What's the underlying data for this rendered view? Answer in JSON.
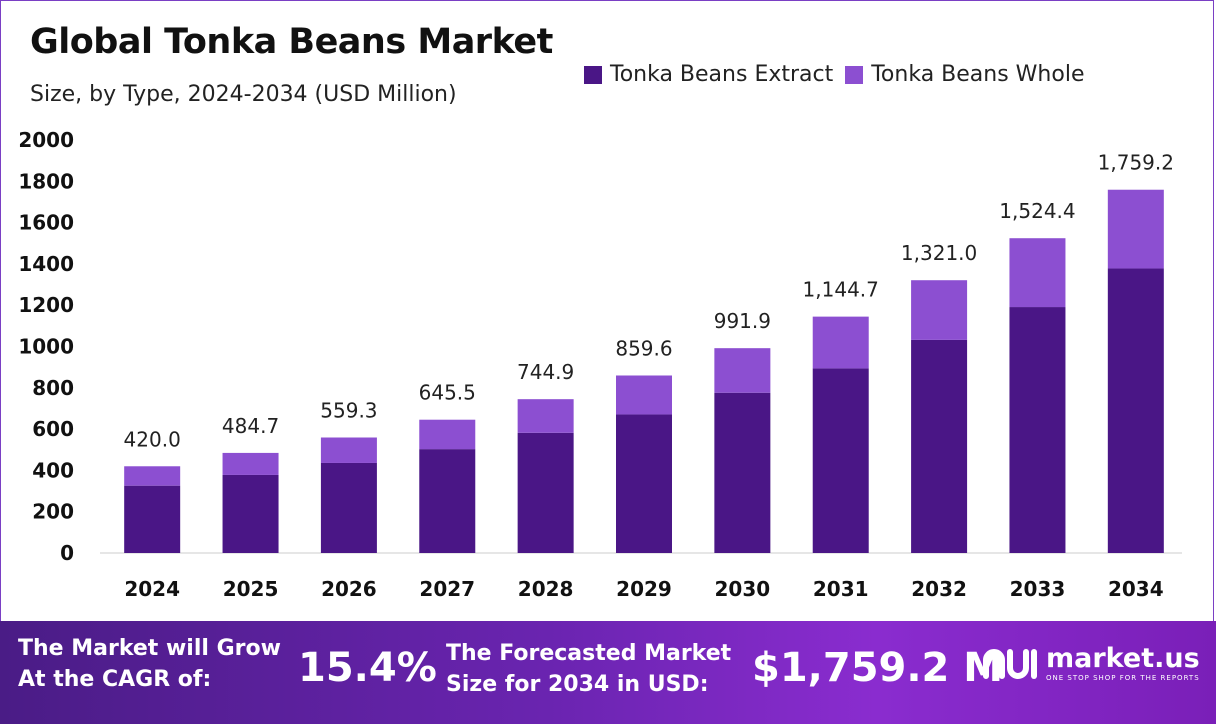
{
  "header": {
    "title": "Global Tonka Beans Market",
    "subtitle": "Size, by Type, 2024-2034 (USD Million)"
  },
  "legend": [
    {
      "label": "Tonka Beans Extract",
      "color": "#4a1686"
    },
    {
      "label": "Tonka Beans Whole",
      "color": "#8c4fd1"
    }
  ],
  "chart_data": {
    "type": "bar",
    "stacked": true,
    "categories": [
      "2024",
      "2025",
      "2026",
      "2027",
      "2028",
      "2029",
      "2030",
      "2031",
      "2032",
      "2033",
      "2034"
    ],
    "series": [
      {
        "name": "Tonka Beans Extract",
        "color": "#4a1686",
        "values": [
          326,
          378,
          436,
          503,
          582,
          671,
          776,
          894,
          1032,
          1191,
          1378
        ]
      },
      {
        "name": "Tonka Beans Whole",
        "color": "#8c4fd1",
        "values": [
          94,
          106.7,
          123.3,
          142.5,
          162.9,
          188.6,
          215.9,
          250.7,
          289,
          333.4,
          381.2
        ]
      }
    ],
    "totals": [
      420.0,
      484.7,
      559.3,
      645.5,
      744.9,
      859.6,
      991.9,
      1144.7,
      1321.0,
      1524.4,
      1759.2
    ],
    "total_labels": [
      "420.0",
      "484.7",
      "559.3",
      "645.5",
      "744.9",
      "859.6",
      "991.9",
      "1,144.7",
      "1,321.0",
      "1,524.4",
      "1,759.2"
    ],
    "yticks": [
      0,
      200,
      400,
      600,
      800,
      1000,
      1200,
      1400,
      1600,
      1800,
      2000
    ],
    "ylim": [
      0,
      2000
    ],
    "grid": false,
    "legend_position": "top-right"
  },
  "footer": {
    "cagr_label_line1": "The Market will Grow",
    "cagr_label_line2": "At the CAGR of:",
    "cagr_value": "15.4%",
    "forecast_label_line1": "The Forecasted Market",
    "forecast_label_line2": "Size for 2034 in USD:",
    "forecast_value": "$1,759.2 M",
    "brand_name": "market.us",
    "brand_tagline": "ONE STOP SHOP FOR THE REPORTS"
  }
}
